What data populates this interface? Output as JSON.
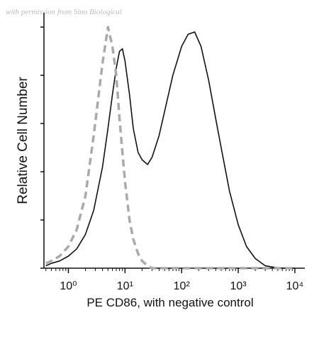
{
  "chart_data": {
    "type": "line",
    "watermark": "with permission from Sino Biological",
    "x_label": "PE CD86, with negative control",
    "y_label": "Relative Cell Number",
    "x_scale": "log",
    "x": [
      0.4,
      0.5,
      0.7,
      1,
      1.4,
      2,
      2.8,
      4,
      5,
      6,
      7,
      8,
      9,
      10,
      12,
      14,
      17,
      20,
      25,
      30,
      40,
      50,
      70,
      100,
      130,
      170,
      220,
      300,
      400,
      500,
      700,
      1000,
      1400,
      2000,
      3000,
      4000,
      6000,
      10000
    ],
    "series": [
      {
        "color": "#111111",
        "dash": false,
        "values": [
          1,
          2,
          3,
          5,
          8,
          14,
          24,
          42,
          58,
          72,
          83,
          90,
          91,
          86,
          72,
          58,
          48,
          45,
          43,
          46,
          55,
          65,
          80,
          92,
          97,
          98,
          92,
          78,
          62,
          50,
          32,
          18,
          9,
          4,
          1,
          0.5,
          0,
          0
        ]
      },
      {
        "color": "#aaaaaa",
        "dash": true,
        "values": [
          2,
          3,
          5,
          9,
          16,
          30,
          55,
          85,
          100,
          92,
          80,
          62,
          48,
          36,
          20,
          12,
          6,
          3,
          1,
          0,
          0,
          0,
          0,
          0,
          0,
          0,
          0,
          0,
          0,
          0,
          0,
          0,
          0,
          0,
          0,
          0,
          0,
          0
        ]
      }
    ],
    "xlim": [
      0.37,
      15000
    ],
    "xticks": [
      {
        "value": 1,
        "label": "10⁰"
      },
      {
        "value": 10,
        "label": "10¹"
      },
      {
        "value": 100,
        "label": "10²"
      },
      {
        "value": 1000,
        "label": "10³"
      },
      {
        "value": 10000,
        "label": "10⁴"
      }
    ],
    "ylim": [
      0,
      103
    ],
    "yticks": [
      0,
      20,
      40,
      60,
      80,
      100
    ]
  }
}
